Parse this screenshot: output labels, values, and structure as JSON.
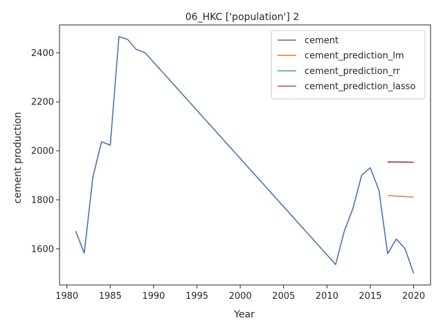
{
  "chart_data": {
    "type": "line",
    "title": "06_HKC ['population'] 2",
    "xlabel": "Year",
    "ylabel": "cement production",
    "xlim": [
      1979.05,
      1922.05
    ],
    "ylim": [
      1452.5,
      2514
    ],
    "xticks": [
      1980,
      1985,
      1990,
      1995,
      2000,
      2005,
      2010,
      2015,
      2020
    ],
    "yticks": [
      1600,
      1800,
      2000,
      2200,
      2400
    ],
    "grid": false,
    "legend_position": "top-right",
    "series": [
      {
        "name": "cement",
        "color": "#4c72b0",
        "points": [
          [
            1981,
            1673
          ],
          [
            1982,
            1582
          ],
          [
            1983,
            1893
          ],
          [
            1984,
            2037
          ],
          [
            1985,
            2023
          ],
          [
            1986,
            2466
          ],
          [
            1987,
            2455
          ],
          [
            1988,
            2414
          ],
          [
            1989,
            2401
          ],
          [
            2011,
            1536
          ],
          [
            2012,
            1672
          ],
          [
            2013,
            1765
          ],
          [
            2014,
            1900
          ],
          [
            2015,
            1931
          ],
          [
            2016,
            1838
          ],
          [
            2017,
            1580
          ],
          [
            2018,
            1640
          ],
          [
            2019,
            1601
          ],
          [
            2020,
            1500
          ]
        ]
      },
      {
        "name": "cement_prediction_lm",
        "color": "#dd8452",
        "points": [
          [
            2017,
            1818
          ],
          [
            2018,
            1815
          ],
          [
            2019,
            1813
          ],
          [
            2020,
            1811
          ]
        ]
      },
      {
        "name": "cement_prediction_rr",
        "color": "#55a868",
        "points": [
          [
            2017,
            1956
          ],
          [
            2018,
            1955
          ],
          [
            2019,
            1955
          ],
          [
            2020,
            1954
          ]
        ]
      },
      {
        "name": "cement_prediction_lasso",
        "color": "#c44e52",
        "points": [
          [
            2017,
            1954
          ],
          [
            2018,
            1954
          ],
          [
            2019,
            1953
          ],
          [
            2020,
            1953
          ]
        ]
      }
    ]
  }
}
